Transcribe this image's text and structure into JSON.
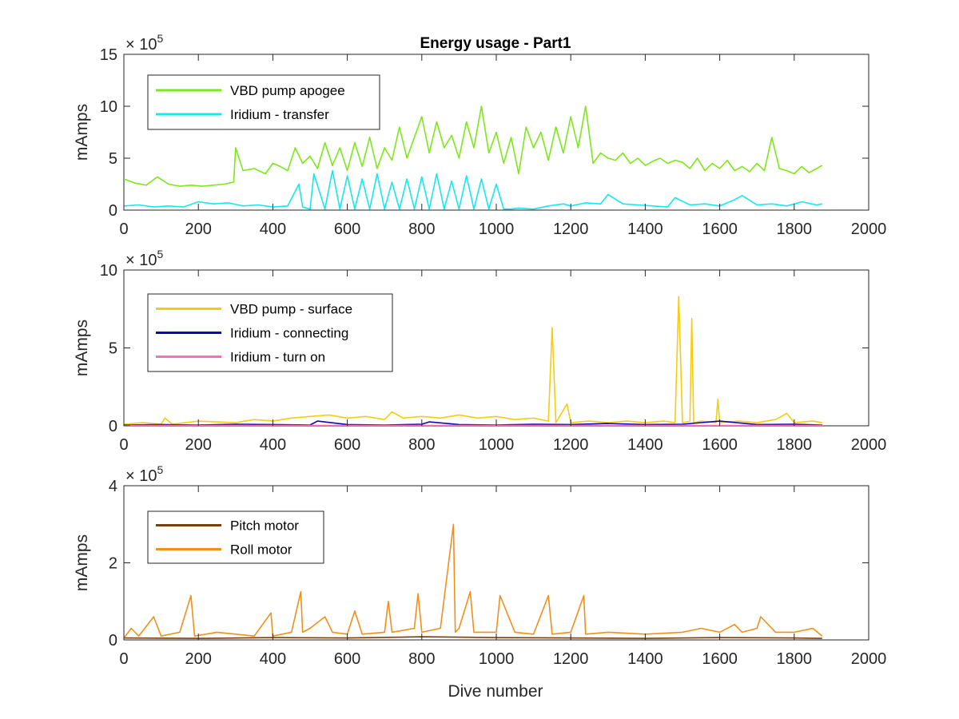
{
  "figure": {
    "title": "Energy usage - Part1",
    "xlabel": "Dive number"
  },
  "chart_data": [
    {
      "type": "line",
      "ylabel": "mAmps",
      "exponent": "5",
      "xlim": [
        0,
        2000
      ],
      "ylim": [
        0,
        1500000
      ],
      "x_ticks": [
        0,
        200,
        400,
        600,
        800,
        1000,
        1200,
        1400,
        1600,
        1800,
        2000
      ],
      "y_ticks": [
        0,
        500000,
        1000000,
        1500000
      ],
      "y_tick_labels": [
        "0",
        "5",
        "10",
        "15"
      ],
      "legend_position": "top-left",
      "grid": false,
      "series": [
        {
          "name": "VBD pump apogee",
          "color": "#7ce817",
          "x": [
            0,
            30,
            60,
            90,
            120,
            150,
            180,
            210,
            240,
            270,
            295,
            300,
            320,
            350,
            380,
            400,
            420,
            440,
            460,
            480,
            500,
            520,
            540,
            560,
            580,
            600,
            620,
            640,
            660,
            680,
            700,
            720,
            740,
            760,
            780,
            800,
            820,
            840,
            860,
            880,
            900,
            920,
            940,
            960,
            980,
            1000,
            1020,
            1040,
            1060,
            1080,
            1100,
            1120,
            1140,
            1160,
            1180,
            1200,
            1220,
            1240,
            1260,
            1280,
            1300,
            1320,
            1340,
            1360,
            1380,
            1400,
            1420,
            1440,
            1460,
            1480,
            1500,
            1520,
            1540,
            1560,
            1580,
            1600,
            1620,
            1640,
            1660,
            1680,
            1700,
            1720,
            1740,
            1760,
            1780,
            1800,
            1820,
            1840,
            1860,
            1875
          ],
          "y": [
            300000,
            260000,
            240000,
            320000,
            250000,
            230000,
            240000,
            230000,
            240000,
            250000,
            270000,
            600000,
            380000,
            400000,
            350000,
            450000,
            420000,
            380000,
            600000,
            450000,
            520000,
            400000,
            650000,
            430000,
            600000,
            380000,
            650000,
            420000,
            700000,
            400000,
            600000,
            480000,
            800000,
            500000,
            700000,
            900000,
            550000,
            850000,
            600000,
            720000,
            500000,
            850000,
            600000,
            1000000,
            550000,
            750000,
            450000,
            700000,
            350000,
            800000,
            600000,
            750000,
            480000,
            800000,
            550000,
            900000,
            600000,
            1000000,
            450000,
            550000,
            500000,
            480000,
            550000,
            450000,
            500000,
            430000,
            470000,
            500000,
            450000,
            480000,
            460000,
            400000,
            500000,
            380000,
            450000,
            400000,
            480000,
            380000,
            420000,
            370000,
            450000,
            380000,
            700000,
            400000,
            380000,
            350000,
            420000,
            360000,
            400000,
            430000
          ]
        },
        {
          "name": "Iridium - transfer",
          "color": "#15e8ee",
          "x": [
            0,
            40,
            80,
            120,
            160,
            200,
            240,
            280,
            320,
            360,
            400,
            440,
            470,
            480,
            500,
            510,
            540,
            560,
            580,
            600,
            620,
            640,
            660,
            680,
            700,
            720,
            740,
            760,
            780,
            800,
            820,
            840,
            860,
            880,
            900,
            920,
            940,
            960,
            980,
            1000,
            1020,
            1040,
            1060,
            1100,
            1140,
            1180,
            1200,
            1240,
            1280,
            1300,
            1340,
            1380,
            1420,
            1460,
            1480,
            1520,
            1560,
            1600,
            1640,
            1660,
            1700,
            1740,
            1780,
            1820,
            1860,
            1875
          ],
          "y": [
            40000,
            50000,
            30000,
            40000,
            30000,
            80000,
            60000,
            70000,
            40000,
            50000,
            30000,
            40000,
            250000,
            30000,
            10000,
            350000,
            10000,
            380000,
            10000,
            330000,
            10000,
            300000,
            10000,
            350000,
            10000,
            270000,
            10000,
            300000,
            10000,
            320000,
            10000,
            350000,
            10000,
            280000,
            10000,
            330000,
            10000,
            300000,
            10000,
            250000,
            10000,
            10000,
            20000,
            10000,
            40000,
            60000,
            40000,
            70000,
            60000,
            150000,
            60000,
            50000,
            40000,
            30000,
            120000,
            50000,
            60000,
            40000,
            100000,
            140000,
            50000,
            60000,
            40000,
            80000,
            50000,
            60000
          ]
        }
      ]
    },
    {
      "type": "line",
      "ylabel": "mAmps",
      "exponent": "5",
      "xlim": [
        0,
        2000
      ],
      "ylim": [
        0,
        1000000
      ],
      "x_ticks": [
        0,
        200,
        400,
        600,
        800,
        1000,
        1200,
        1400,
        1600,
        1800,
        2000
      ],
      "y_ticks": [
        0,
        500000,
        1000000
      ],
      "y_tick_labels": [
        "0",
        "5",
        "10"
      ],
      "legend_position": "top-left",
      "grid": false,
      "series": [
        {
          "name": "VBD pump - surface",
          "color": "#f5cd0f",
          "x": [
            0,
            50,
            100,
            110,
            130,
            200,
            300,
            350,
            400,
            450,
            500,
            550,
            600,
            650,
            700,
            720,
            750,
            800,
            850,
            900,
            950,
            1000,
            1050,
            1100,
            1140,
            1150,
            1160,
            1170,
            1190,
            1200,
            1250,
            1300,
            1350,
            1400,
            1450,
            1480,
            1490,
            1500,
            1520,
            1525,
            1530,
            1550,
            1590,
            1595,
            1600,
            1650,
            1700,
            1750,
            1780,
            1800,
            1850,
            1875
          ],
          "y": [
            10000,
            20000,
            10000,
            50000,
            10000,
            30000,
            20000,
            40000,
            30000,
            50000,
            60000,
            70000,
            50000,
            60000,
            40000,
            90000,
            50000,
            60000,
            50000,
            70000,
            50000,
            60000,
            40000,
            50000,
            30000,
            630000,
            20000,
            60000,
            140000,
            20000,
            30000,
            20000,
            30000,
            20000,
            30000,
            20000,
            830000,
            20000,
            30000,
            690000,
            20000,
            30000,
            20000,
            170000,
            20000,
            30000,
            20000,
            40000,
            80000,
            20000,
            30000,
            20000
          ]
        },
        {
          "name": "Iridium - connecting",
          "color": "#0a0ab4",
          "x": [
            0,
            100,
            200,
            300,
            400,
            500,
            520,
            600,
            700,
            800,
            820,
            900,
            1000,
            1100,
            1200,
            1300,
            1400,
            1500,
            1600,
            1700,
            1800,
            1875
          ],
          "y": [
            5000,
            8000,
            5000,
            10000,
            8000,
            5000,
            30000,
            8000,
            5000,
            10000,
            25000,
            8000,
            5000,
            10000,
            8000,
            15000,
            8000,
            10000,
            30000,
            8000,
            10000,
            5000
          ]
        },
        {
          "name": "Iridium - turn on",
          "color": "#ff6eb4",
          "x": [
            0,
            300,
            600,
            900,
            1200,
            1500,
            1875
          ],
          "y": [
            2000,
            2000,
            2000,
            2000,
            2000,
            2000,
            2000
          ]
        }
      ]
    },
    {
      "type": "line",
      "ylabel": "mAmps",
      "exponent": "5",
      "xlim": [
        0,
        2000
      ],
      "ylim": [
        0,
        400000
      ],
      "x_ticks": [
        0,
        200,
        400,
        600,
        800,
        1000,
        1200,
        1400,
        1600,
        1800,
        2000
      ],
      "y_ticks": [
        0,
        200000,
        400000
      ],
      "y_tick_labels": [
        "0",
        "2",
        "4"
      ],
      "legend_position": "top-left",
      "grid": false,
      "series": [
        {
          "name": "Pitch motor",
          "color": "#7a3d0c",
          "x": [
            0,
            200,
            400,
            600,
            800,
            1000,
            1200,
            1400,
            1600,
            1800,
            1875
          ],
          "y": [
            5000,
            4000,
            6000,
            5000,
            8000,
            6000,
            5000,
            4000,
            6000,
            5000,
            4000
          ]
        },
        {
          "name": "Roll motor",
          "color": "#f0901a",
          "x": [
            0,
            20,
            40,
            80,
            100,
            150,
            180,
            190,
            250,
            300,
            350,
            395,
            400,
            450,
            475,
            480,
            500,
            540,
            560,
            600,
            620,
            640,
            700,
            710,
            720,
            780,
            790,
            800,
            850,
            885,
            890,
            900,
            930,
            940,
            1000,
            1010,
            1050,
            1100,
            1140,
            1150,
            1200,
            1235,
            1240,
            1300,
            1400,
            1500,
            1550,
            1600,
            1640,
            1660,
            1700,
            1710,
            1750,
            1800,
            1850,
            1875
          ],
          "y": [
            5000,
            30000,
            10000,
            60000,
            10000,
            20000,
            115000,
            10000,
            20000,
            15000,
            10000,
            70000,
            10000,
            20000,
            125000,
            20000,
            30000,
            60000,
            20000,
            15000,
            75000,
            15000,
            20000,
            100000,
            20000,
            30000,
            120000,
            20000,
            30000,
            300000,
            20000,
            30000,
            125000,
            20000,
            20000,
            115000,
            20000,
            15000,
            115000,
            15000,
            20000,
            115000,
            15000,
            20000,
            15000,
            20000,
            30000,
            20000,
            40000,
            20000,
            30000,
            60000,
            20000,
            20000,
            30000,
            10000
          ]
        }
      ]
    }
  ]
}
